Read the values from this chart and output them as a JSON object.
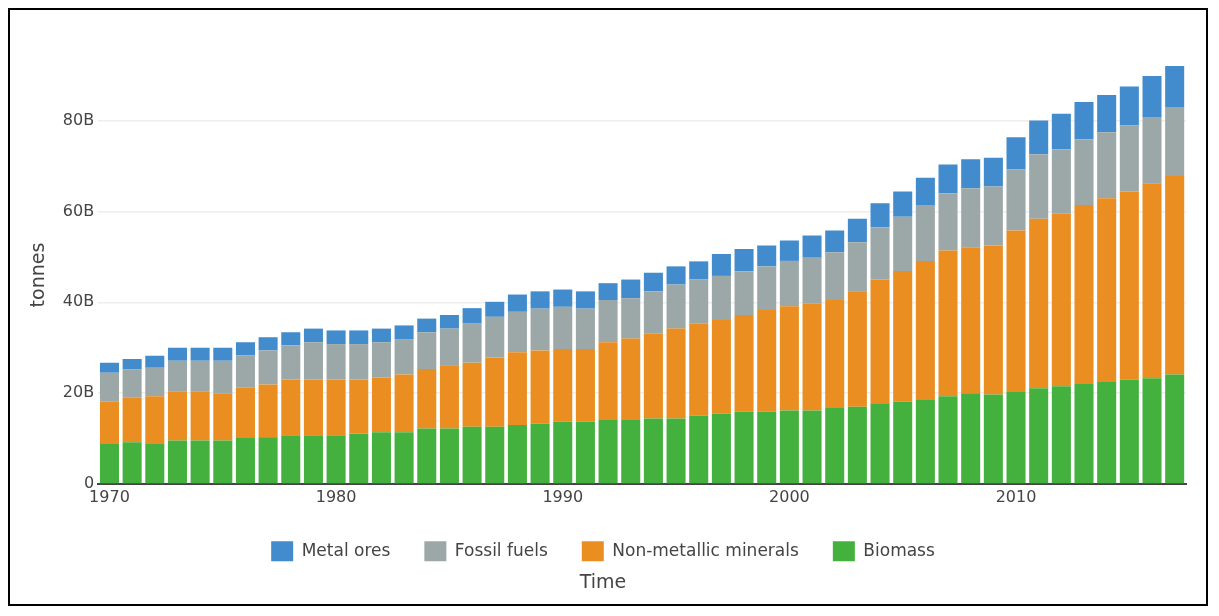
{
  "chart_data": {
    "type": "bar",
    "stacked": true,
    "xlabel": "Time",
    "ylabel": "tonnes",
    "x": [
      1970,
      1971,
      1972,
      1973,
      1974,
      1975,
      1976,
      1977,
      1978,
      1979,
      1980,
      1981,
      1982,
      1983,
      1984,
      1985,
      1986,
      1987,
      1988,
      1989,
      1990,
      1991,
      1992,
      1993,
      1994,
      1995,
      1996,
      1997,
      1998,
      1999,
      2000,
      2001,
      2002,
      2003,
      2004,
      2005,
      2006,
      2007,
      2008,
      2009,
      2010,
      2011,
      2012,
      2013,
      2014,
      2015,
      2016,
      2017
    ],
    "xlim": [
      1969.5,
      2017.5
    ],
    "xticks": [
      1970,
      1980,
      1990,
      2000,
      2010
    ],
    "ylim": [
      0,
      92000000000
    ],
    "yticks": [
      {
        "value": 0,
        "label": "0"
      },
      {
        "value": 20000000000,
        "label": "20B"
      },
      {
        "value": 40000000000,
        "label": "40B"
      },
      {
        "value": 60000000000,
        "label": "60B"
      },
      {
        "value": 80000000000,
        "label": "80B"
      }
    ],
    "grid": "y",
    "legend": "bottom",
    "series": [
      {
        "name": "Biomass",
        "color": "#44b03d",
        "values": [
          8800000000,
          9200000000,
          8800000000,
          9600000000,
          9600000000,
          9600000000,
          10300000000,
          10300000000,
          10700000000,
          10700000000,
          10700000000,
          11100000000,
          11400000000,
          11400000000,
          12200000000,
          12200000000,
          12600000000,
          12600000000,
          13000000000,
          13300000000,
          13700000000,
          13700000000,
          14100000000,
          14100000000,
          14400000000,
          14400000000,
          15100000000,
          15500000000,
          15900000000,
          15900000000,
          16200000000,
          16200000000,
          16700000000,
          17000000000,
          17800000000,
          18100000000,
          18500000000,
          19300000000,
          20000000000,
          19700000000,
          20400000000,
          21100000000,
          21500000000,
          22200000000,
          22600000000,
          23000000000,
          23300000000,
          24100000000
        ]
      },
      {
        "name": "Non-metallic minerals",
        "color": "#eb8e22",
        "values": [
          9300000000,
          9800000000,
          10500000000,
          10800000000,
          10800000000,
          10400000000,
          10900000000,
          11600000000,
          12300000000,
          12300000000,
          12300000000,
          11900000000,
          12000000000,
          12700000000,
          13100000000,
          13800000000,
          14100000000,
          15200000000,
          16000000000,
          16100000000,
          16000000000,
          16000000000,
          17100000000,
          17900000000,
          18700000000,
          19800000000,
          20200000000,
          20600000000,
          21300000000,
          22400000000,
          22900000000,
          23600000000,
          23800000000,
          25400000000,
          27200000000,
          28800000000,
          30600000000,
          32100000000,
          32100000000,
          32800000000,
          35400000000,
          37300000000,
          38000000000,
          39200000000,
          40300000000,
          41400000000,
          42900000000,
          43700000000
        ]
      },
      {
        "name": "Fossil fuels",
        "color": "#9ca8a7",
        "values": [
          6400000000,
          6200000000,
          6300000000,
          6700000000,
          6700000000,
          7100000000,
          7100000000,
          7500000000,
          7500000000,
          8200000000,
          7800000000,
          7800000000,
          7800000000,
          7800000000,
          8100000000,
          8200000000,
          8600000000,
          9000000000,
          8900000000,
          9200000000,
          9300000000,
          8900000000,
          9300000000,
          8900000000,
          9300000000,
          9700000000,
          9700000000,
          9700000000,
          9600000000,
          9600000000,
          10000000000,
          10000000000,
          10500000000,
          10800000000,
          11500000000,
          11900000000,
          12300000000,
          12600000000,
          13000000000,
          13000000000,
          13400000000,
          14200000000,
          14200000000,
          14500000000,
          14500000000,
          14500000000,
          14600000000,
          15200000000
        ]
      },
      {
        "name": "Metal ores",
        "color": "#428bcc",
        "values": [
          2200000000,
          2300000000,
          2600000000,
          2900000000,
          2900000000,
          2900000000,
          2900000000,
          2900000000,
          2900000000,
          3000000000,
          3000000000,
          3000000000,
          3000000000,
          3000000000,
          3000000000,
          3000000000,
          3400000000,
          3300000000,
          3800000000,
          3800000000,
          3800000000,
          3800000000,
          3700000000,
          4100000000,
          4100000000,
          4000000000,
          4000000000,
          4800000000,
          4900000000,
          4600000000,
          4500000000,
          4900000000,
          4800000000,
          5200000000,
          5300000000,
          5600000000,
          6000000000,
          6300000000,
          6400000000,
          6300000000,
          7100000000,
          7400000000,
          7800000000,
          8200000000,
          8200000000,
          8600000000,
          9000000000,
          9000000000
        ]
      }
    ]
  }
}
